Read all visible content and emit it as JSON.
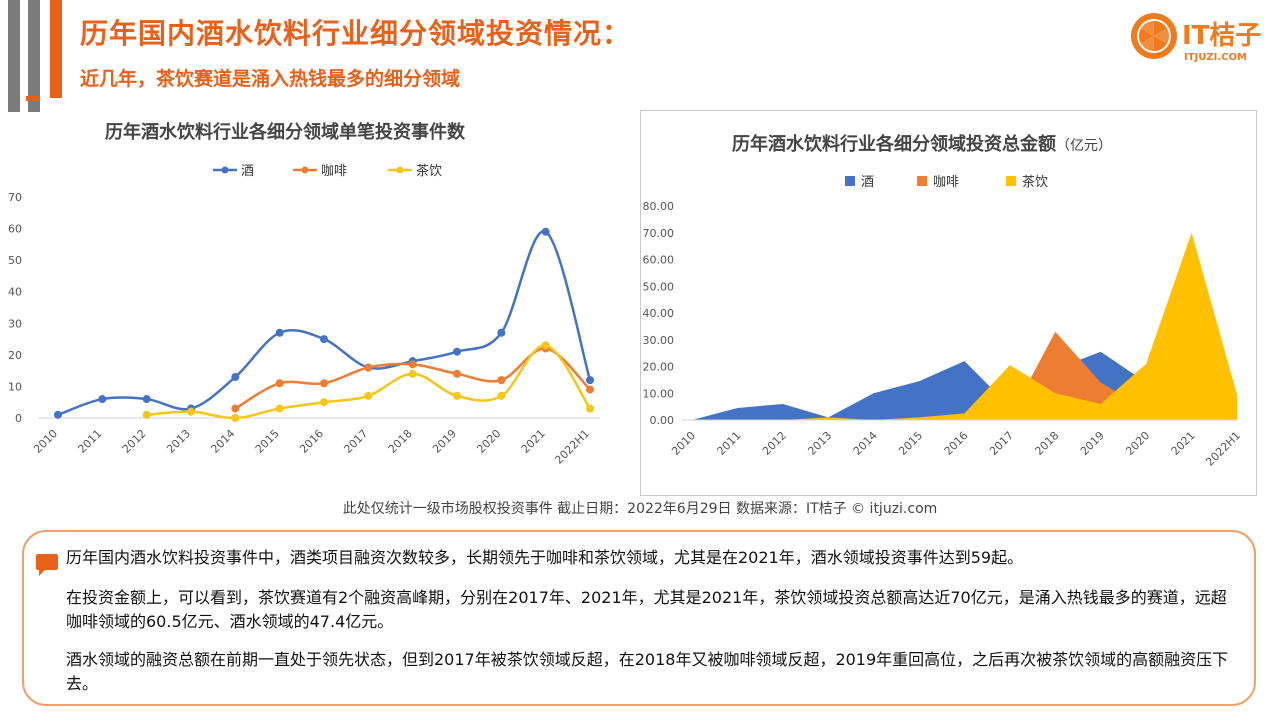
{
  "header": {
    "title": "历年国内酒水饮料行业细分领域投资情况：",
    "subtitle": "近几年，茶饮赛道是涌入热钱最多的细分领域",
    "colors": {
      "accent": "#e8611a",
      "gray": "#7a7a7a"
    }
  },
  "logo": {
    "brand": "IT桔子",
    "domain": "ITJUZI.COM",
    "icon": "orange-slice-icon"
  },
  "footnote": "此处仅统计一级市场股权投资事件    截止日期：2022年6月29日    数据来源：IT桔子 © itjuzi.com",
  "summary": {
    "p1": "历年国内酒水饮料投资事件中，酒类项目融资次数较多，长期领先于咖啡和茶饮领域，尤其是在2021年，酒水领域投资事件达到59起。",
    "p2": "在投资金额上，可以看到，茶饮赛道有2个融资高峰期，分别在2017年、2021年，尤其是2021年，茶饮领域投资总额高达近70亿元，是涌入热钱最多的赛道，远超咖啡领域的60.5亿元、酒水领域的47.4亿元。",
    "p3": "酒水领域的融资总额在前期一直处于领先状态，但到2017年被茶饮领域反超，在2018年又被咖啡领域反超，2019年重回高位，之后再次被茶饮领域的高额融资压下去。"
  },
  "chart_data": [
    {
      "type": "line",
      "title": "历年酒水饮料行业各细分领域单笔投资事件数",
      "categories": [
        "2010",
        "2011",
        "2012",
        "2013",
        "2014",
        "2015",
        "2016",
        "2017",
        "2018",
        "2019",
        "2020",
        "2021",
        "2022H1"
      ],
      "ylim": [
        0,
        70
      ],
      "yticks": [
        0,
        10,
        20,
        30,
        40,
        50,
        60,
        70
      ],
      "legend_position": "top",
      "series": [
        {
          "name": "酒",
          "color": "#4472c4",
          "values": [
            1,
            6,
            6,
            3,
            13,
            27,
            25,
            16,
            18,
            21,
            27,
            59,
            12
          ]
        },
        {
          "name": "咖啡",
          "color": "#ed7d31",
          "values": [
            null,
            null,
            null,
            null,
            3,
            11,
            11,
            16,
            17,
            14,
            12,
            22,
            9
          ]
        },
        {
          "name": "茶饮",
          "color": "#f5c518",
          "values": [
            null,
            null,
            1,
            2,
            0,
            3,
            5,
            7,
            14,
            7,
            7,
            23,
            3
          ]
        }
      ]
    },
    {
      "type": "area",
      "title": "历年酒水饮料行业各细分领域投资总金额",
      "unit": "（亿元）",
      "categories": [
        "2010",
        "2011",
        "2012",
        "2013",
        "2014",
        "2015",
        "2016",
        "2017",
        "2018",
        "2019",
        "2020",
        "2021",
        "2022H1"
      ],
      "ylim": [
        0,
        80
      ],
      "yticks": [
        "0.00",
        "10.00",
        "20.00",
        "30.00",
        "40.00",
        "50.00",
        "60.00",
        "70.00",
        "80.00"
      ],
      "legend_position": "top",
      "series": [
        {
          "name": "酒",
          "color": "#4472c4",
          "values": [
            0,
            4.5,
            6,
            1,
            10,
            14.5,
            22,
            5,
            19,
            25.5,
            14,
            47.4,
            3
          ]
        },
        {
          "name": "咖啡",
          "color": "#ed7d31",
          "values": [
            0,
            0,
            0,
            0,
            0,
            1,
            0,
            1,
            33,
            14,
            4,
            60.5,
            2
          ]
        },
        {
          "name": "茶饮",
          "color": "#ffc000",
          "values": [
            0,
            0,
            0,
            1,
            0,
            1,
            2.5,
            20.5,
            10,
            6,
            21,
            70,
            9.5
          ]
        }
      ]
    }
  ]
}
